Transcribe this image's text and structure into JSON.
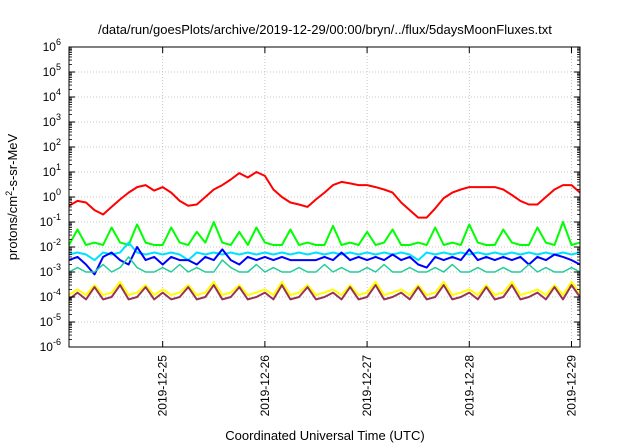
{
  "chart_data": {
    "type": "line",
    "title": "/data/run/goesPlots/archive/2019-12-29/00:00/bryn/../flux/5daysMoonFluxes.txt",
    "xlabel": "Coordinated Universal Time (UTC)",
    "ylabel": {
      "base": "protons/cm",
      "sup": "2",
      "rest": "-s-sr-MeV"
    },
    "y_scale": "log",
    "ylim_exp": [
      -6,
      6
    ],
    "xlim": [
      "2019-12-24 02:00",
      "2019-12-29 02:00"
    ],
    "x_ticks": [
      {
        "value": "2019-12-25 00:00",
        "label": "2019-12-25"
      },
      {
        "value": "2019-12-26 00:00",
        "label": "2019-12-26"
      },
      {
        "value": "2019-12-27 00:00",
        "label": "2019-12-27"
      },
      {
        "value": "2019-12-28 00:00",
        "label": "2019-12-28"
      },
      {
        "value": "2019-12-29 00:00",
        "label": "2019-12-29"
      }
    ],
    "y_ticks": [
      {
        "exp": -6,
        "label": "10",
        "sup": "-6"
      },
      {
        "exp": -5,
        "label": "10",
        "sup": "-5"
      },
      {
        "exp": -4,
        "label": "10",
        "sup": "-4"
      },
      {
        "exp": -3,
        "label": "10",
        "sup": "-3"
      },
      {
        "exp": -2,
        "label": "10",
        "sup": "-2"
      },
      {
        "exp": -1,
        "label": "10",
        "sup": "-1"
      },
      {
        "exp": 0,
        "label": "10",
        "sup": "0"
      },
      {
        "exp": 1,
        "label": "10",
        "sup": "1"
      },
      {
        "exp": 2,
        "label": "10",
        "sup": "2"
      },
      {
        "exp": 3,
        "label": "10",
        "sup": "3"
      },
      {
        "exp": 4,
        "label": "10",
        "sup": "4"
      },
      {
        "exp": 5,
        "label": "10",
        "sup": "5"
      },
      {
        "exp": 6,
        "label": "10",
        "sup": "6"
      }
    ],
    "grid": true,
    "legend": "none",
    "series": [
      {
        "color": "#ff0000",
        "width": 2,
        "x_hours": [
          0,
          2,
          4,
          6,
          8,
          10,
          12,
          14,
          16,
          18,
          20,
          22,
          24,
          26,
          28,
          30,
          32,
          34,
          36,
          38,
          40,
          42,
          44,
          46,
          48,
          50,
          52,
          54,
          56,
          58,
          60,
          62,
          64,
          66,
          68,
          70,
          72,
          74,
          76,
          78,
          80,
          82,
          84,
          86,
          88,
          90,
          92,
          94,
          96,
          98,
          100,
          102,
          104,
          106,
          108,
          110,
          112,
          114,
          116,
          118,
          120
        ],
        "values": [
          0.45,
          0.7,
          0.6,
          0.3,
          0.2,
          0.4,
          0.8,
          1.5,
          2.5,
          3,
          1.8,
          2.5,
          1.5,
          0.7,
          0.45,
          0.5,
          1,
          2,
          3,
          5,
          9,
          6,
          10,
          7,
          2,
          1,
          0.6,
          0.5,
          0.4,
          0.8,
          1.5,
          3,
          4,
          3.5,
          3,
          3,
          2.5,
          2,
          1.5,
          0.6,
          0.3,
          0.15,
          0.15,
          0.35,
          0.9,
          1.5,
          2,
          2.5,
          2.5,
          2.5,
          2.5,
          2,
          1.2,
          0.7,
          0.5,
          0.5,
          1,
          2,
          3,
          3,
          1.5
        ]
      },
      {
        "color": "#00ff00",
        "width": 2,
        "x_hours": [
          0,
          2,
          4,
          6,
          8,
          10,
          12,
          14,
          16,
          18,
          20,
          22,
          24,
          26,
          28,
          30,
          32,
          34,
          36,
          38,
          40,
          42,
          44,
          46,
          48,
          50,
          52,
          54,
          56,
          58,
          60,
          62,
          64,
          66,
          68,
          70,
          72,
          74,
          76,
          78,
          80,
          82,
          84,
          86,
          88,
          90,
          92,
          94,
          96,
          98,
          100,
          102,
          104,
          106,
          108,
          110,
          112,
          114,
          116,
          118,
          120
        ],
        "values": [
          0.012,
          0.05,
          0.012,
          0.015,
          0.012,
          0.06,
          0.015,
          0.012,
          0.08,
          0.015,
          0.012,
          0.012,
          0.06,
          0.015,
          0.012,
          0.04,
          0.015,
          0.1,
          0.015,
          0.012,
          0.04,
          0.012,
          0.06,
          0.015,
          0.012,
          0.012,
          0.05,
          0.012,
          0.015,
          0.012,
          0.012,
          0.07,
          0.012,
          0.015,
          0.012,
          0.04,
          0.012,
          0.015,
          0.05,
          0.012,
          0.012,
          0.015,
          0.012,
          0.06,
          0.012,
          0.015,
          0.012,
          0.08,
          0.015,
          0.012,
          0.012,
          0.05,
          0.015,
          0.012,
          0.012,
          0.06,
          0.015,
          0.012,
          0.1,
          0.012,
          0.015
        ]
      },
      {
        "color": "#00e0ff",
        "width": 2,
        "x_hours": [
          0,
          2,
          4,
          6,
          8,
          10,
          12,
          14,
          16,
          18,
          20,
          22,
          24,
          26,
          28,
          30,
          32,
          34,
          36,
          38,
          40,
          42,
          44,
          46,
          48,
          50,
          52,
          54,
          56,
          58,
          60,
          62,
          64,
          66,
          68,
          70,
          72,
          74,
          76,
          78,
          80,
          82,
          84,
          86,
          88,
          90,
          92,
          94,
          96,
          98,
          100,
          102,
          104,
          106,
          108,
          110,
          112,
          114,
          116,
          118,
          120
        ],
        "values": [
          0.005,
          0.006,
          0.005,
          0.003,
          0.006,
          0.005,
          0.006,
          0.015,
          0.006,
          0.005,
          0.006,
          0.005,
          0.006,
          0.005,
          0.003,
          0.006,
          0.005,
          0.006,
          0.005,
          0.006,
          0.005,
          0.006,
          0.005,
          0.006,
          0.005,
          0.006,
          0.005,
          0.006,
          0.005,
          0.006,
          0.005,
          0.006,
          0.005,
          0.006,
          0.005,
          0.006,
          0.005,
          0.006,
          0.005,
          0.006,
          0.005,
          0.003,
          0.006,
          0.005,
          0.006,
          0.005,
          0.006,
          0.005,
          0.006,
          0.005,
          0.006,
          0.005,
          0.006,
          0.005,
          0.006,
          0.005,
          0.006,
          0.005,
          0.006,
          0.005,
          0.006
        ]
      },
      {
        "color": "#0000ff",
        "width": 2,
        "x_hours": [
          0,
          2,
          4,
          6,
          8,
          10,
          12,
          14,
          16,
          18,
          20,
          22,
          24,
          26,
          28,
          30,
          32,
          34,
          36,
          38,
          40,
          42,
          44,
          46,
          48,
          50,
          52,
          54,
          56,
          58,
          60,
          62,
          64,
          66,
          68,
          70,
          72,
          74,
          76,
          78,
          80,
          82,
          84,
          86,
          88,
          90,
          92,
          94,
          96,
          98,
          100,
          102,
          104,
          106,
          108,
          110,
          112,
          114,
          116,
          118,
          120
        ],
        "values": [
          0.003,
          0.004,
          0.002,
          0.0008,
          0.004,
          0.006,
          0.003,
          0.002,
          0.01,
          0.003,
          0.004,
          0.002,
          0.004,
          0.003,
          0.003,
          0.002,
          0.004,
          0.003,
          0.008,
          0.003,
          0.002,
          0.004,
          0.003,
          0.004,
          0.003,
          0.004,
          0.003,
          0.003,
          0.003,
          0.003,
          0.004,
          0.003,
          0.006,
          0.003,
          0.004,
          0.003,
          0.004,
          0.003,
          0.005,
          0.003,
          0.004,
          0.002,
          0.0015,
          0.004,
          0.003,
          0.004,
          0.003,
          0.008,
          0.003,
          0.004,
          0.003,
          0.004,
          0.003,
          0.004,
          0.002,
          0.004,
          0.003,
          0.005,
          0.004,
          0.003,
          0.002
        ]
      },
      {
        "color": "#22cc99",
        "width": 1.5,
        "x_hours": [
          0,
          2,
          4,
          6,
          8,
          10,
          12,
          14,
          16,
          18,
          20,
          22,
          24,
          26,
          28,
          30,
          32,
          34,
          36,
          38,
          40,
          42,
          44,
          46,
          48,
          50,
          52,
          54,
          56,
          58,
          60,
          62,
          64,
          66,
          68,
          70,
          72,
          74,
          76,
          78,
          80,
          82,
          84,
          86,
          88,
          90,
          92,
          94,
          96,
          98,
          100,
          102,
          104,
          106,
          108,
          110,
          112,
          114,
          116,
          118,
          120
        ],
        "values": [
          0.001,
          0.0015,
          0.001,
          0.001,
          0.002,
          0.001,
          0.0015,
          0.004,
          0.0015,
          0.001,
          0.001,
          0.0015,
          0.001,
          0.002,
          0.001,
          0.0015,
          0.001,
          0.001,
          0.003,
          0.0015,
          0.001,
          0.001,
          0.002,
          0.001,
          0.0015,
          0.001,
          0.001,
          0.0015,
          0.001,
          0.001,
          0.002,
          0.001,
          0.0015,
          0.001,
          0.001,
          0.0015,
          0.001,
          0.002,
          0.001,
          0.001,
          0.0015,
          0.001,
          0.001,
          0.0015,
          0.001,
          0.002,
          0.001,
          0.001,
          0.0015,
          0.001,
          0.001,
          0.0015,
          0.001,
          0.001,
          0.002,
          0.001,
          0.0015,
          0.001,
          0.001,
          0.0015,
          0.001
        ]
      },
      {
        "color": "#ffff00",
        "width": 2,
        "x_hours": [
          0,
          2,
          4,
          6,
          8,
          10,
          12,
          14,
          16,
          18,
          20,
          22,
          24,
          26,
          28,
          30,
          32,
          34,
          36,
          38,
          40,
          42,
          44,
          46,
          48,
          50,
          52,
          54,
          56,
          58,
          60,
          62,
          64,
          66,
          68,
          70,
          72,
          74,
          76,
          78,
          80,
          82,
          84,
          86,
          88,
          90,
          92,
          94,
          96,
          98,
          100,
          102,
          104,
          106,
          108,
          110,
          112,
          114,
          116,
          118,
          120
        ],
        "values": [
          0.00012,
          0.0002,
          0.00012,
          0.0003,
          0.00012,
          0.00015,
          0.0004,
          0.00012,
          0.00015,
          0.0003,
          0.00012,
          0.0002,
          0.00012,
          0.00015,
          0.0003,
          0.00012,
          0.00015,
          0.0004,
          0.00012,
          0.00015,
          0.0003,
          0.00012,
          0.00015,
          0.0002,
          0.00012,
          0.0004,
          0.00012,
          0.00015,
          0.0003,
          0.00012,
          0.00015,
          0.0002,
          0.00012,
          0.0003,
          0.00012,
          0.00015,
          0.0004,
          0.00012,
          0.00015,
          0.0002,
          0.00012,
          0.0003,
          0.00012,
          0.00015,
          0.0004,
          0.00012,
          0.00015,
          0.0002,
          0.00012,
          0.0003,
          0.00012,
          0.00015,
          0.0004,
          0.00012,
          0.00015,
          0.0002,
          0.00012,
          0.0003,
          0.00012,
          0.0004,
          0.00015
        ]
      },
      {
        "color": "#993355",
        "width": 2,
        "x_hours": [
          0,
          2,
          4,
          6,
          8,
          10,
          12,
          14,
          16,
          18,
          20,
          22,
          24,
          26,
          28,
          30,
          32,
          34,
          36,
          38,
          40,
          42,
          44,
          46,
          48,
          50,
          52,
          54,
          56,
          58,
          60,
          62,
          64,
          66,
          68,
          70,
          72,
          74,
          76,
          78,
          80,
          82,
          84,
          86,
          88,
          90,
          92,
          94,
          96,
          98,
          100,
          102,
          104,
          106,
          108,
          110,
          112,
          114,
          116,
          118,
          120
        ],
        "values": [
          8e-05,
          0.00015,
          8e-05,
          0.00025,
          8e-05,
          0.0001,
          0.0003,
          8e-05,
          0.0001,
          0.00025,
          8e-05,
          0.00015,
          8e-05,
          0.0001,
          0.00025,
          8e-05,
          0.0001,
          0.0003,
          8e-05,
          0.0001,
          0.00025,
          8e-05,
          0.0001,
          0.00015,
          8e-05,
          0.0003,
          8e-05,
          0.0001,
          0.00025,
          8e-05,
          0.0001,
          0.00015,
          8e-05,
          0.00025,
          8e-05,
          0.0001,
          0.0003,
          8e-05,
          0.0001,
          0.00015,
          8e-05,
          0.00025,
          8e-05,
          0.0001,
          0.0003,
          8e-05,
          0.0001,
          0.00015,
          8e-05,
          0.00025,
          8e-05,
          0.0001,
          0.0003,
          8e-05,
          0.0001,
          0.00015,
          8e-05,
          0.00025,
          8e-05,
          0.0003,
          0.0001
        ]
      }
    ]
  }
}
